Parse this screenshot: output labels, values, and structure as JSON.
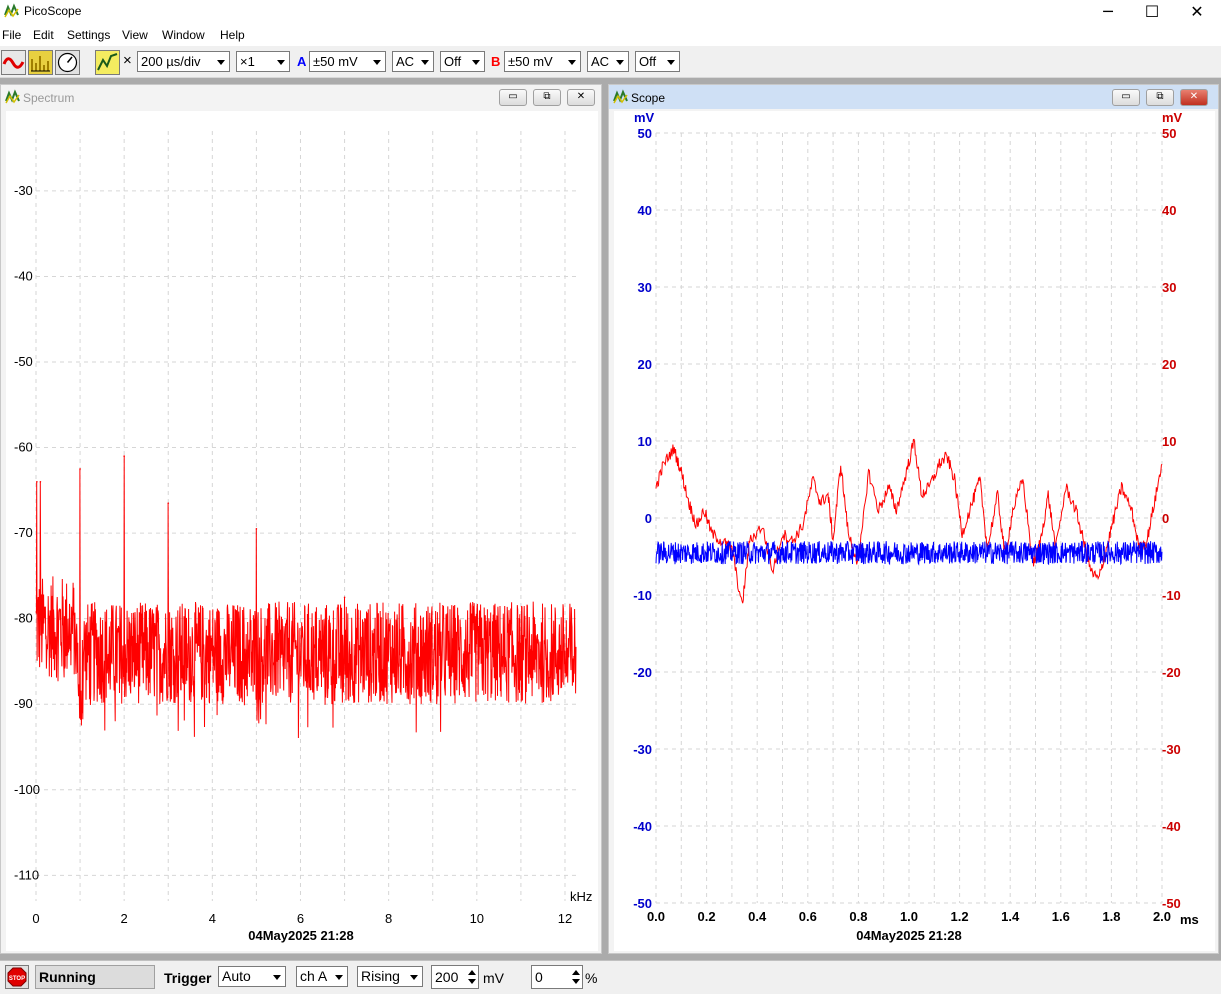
{
  "app": {
    "title": "PicoScope",
    "window_controls": {
      "minimize": "─",
      "maximize": "☐",
      "close": "✕"
    }
  },
  "menu": [
    "File",
    "Edit",
    "Settings",
    "View",
    "Window",
    "Help"
  ],
  "toolbar": {
    "icons": [
      "scope-mode-icon",
      "spectrum-mode-icon",
      "meter-mode-icon",
      "signal-generator-icon"
    ],
    "multiply_sign": "×",
    "timebase": "200 µs/div",
    "zoom": "×1",
    "channel_a": {
      "label": "A",
      "range": "±50 mV",
      "coupling": "AC",
      "filter": "Off",
      "color": "#0000ff"
    },
    "channel_b": {
      "label": "B",
      "range": "±50 mV",
      "coupling": "AC",
      "filter": "Off",
      "color": "#ff0000"
    }
  },
  "spectrum_window": {
    "title": "Spectrum",
    "buttons": {
      "minimize": "▭",
      "restore": "⧉",
      "close": "✕"
    },
    "timestamp": "04May2025  21:28",
    "chart_data": {
      "type": "line",
      "x_unit": "kHz",
      "x_ticks": [
        0,
        2,
        4,
        6,
        8,
        10,
        12
      ],
      "y_ticks": [
        -30,
        -40,
        -50,
        -60,
        -70,
        -80,
        -90,
        -100,
        -110
      ],
      "xlim": [
        0,
        12.25
      ],
      "ylim": [
        -113,
        -23
      ],
      "noise_floor_db": -84,
      "series": [
        {
          "color": "#ff0000",
          "peaks": [
            {
              "x": 0.02,
              "y": -64
            },
            {
              "x": 0.1,
              "y": -64
            },
            {
              "x": 1.0,
              "y": -62.5
            },
            {
              "x": 2.0,
              "y": -61
            },
            {
              "x": 3.0,
              "y": -66.5
            },
            {
              "x": 5.0,
              "y": -69.5
            },
            {
              "x": 7.0,
              "y": -77.5
            }
          ]
        }
      ]
    }
  },
  "scope_window": {
    "title": "Scope",
    "buttons": {
      "minimize": "▭",
      "restore": "⧉",
      "close": "✕"
    },
    "timestamp": "04May2025  21:28",
    "chart_data": {
      "type": "line",
      "x_unit": "ms",
      "x_ticks": [
        "0.0",
        "0.2",
        "0.4",
        "0.6",
        "0.8",
        "1.0",
        "1.2",
        "1.4",
        "1.6",
        "1.8",
        "2.0"
      ],
      "y_ticks": [
        50,
        40,
        30,
        20,
        10,
        0,
        -10,
        -20,
        -30,
        -40,
        -50
      ],
      "y_unit_left": "mV",
      "y_unit_right": "mV",
      "xlim": [
        0,
        2.0
      ],
      "ylim": [
        -50,
        50
      ],
      "series": [
        {
          "color": "#0000ff",
          "channel": "A",
          "mean_mv": -4.5,
          "noise_mv": 1.5
        },
        {
          "color": "#ff0000",
          "channel": "B",
          "points": [
            [
              0.0,
              4
            ],
            [
              0.03,
              7
            ],
            [
              0.07,
              9
            ],
            [
              0.1,
              6
            ],
            [
              0.13,
              2
            ],
            [
              0.16,
              -1
            ],
            [
              0.19,
              1
            ],
            [
              0.22,
              -2
            ],
            [
              0.26,
              -3
            ],
            [
              0.3,
              -4
            ],
            [
              0.34,
              -11.5
            ],
            [
              0.37,
              -3
            ],
            [
              0.42,
              -1
            ],
            [
              0.46,
              -7
            ],
            [
              0.5,
              -2
            ],
            [
              0.54,
              -3
            ],
            [
              0.58,
              -1
            ],
            [
              0.62,
              5
            ],
            [
              0.65,
              2
            ],
            [
              0.68,
              3
            ],
            [
              0.7,
              -3
            ],
            [
              0.73,
              7
            ],
            [
              0.76,
              -2
            ],
            [
              0.8,
              -6
            ],
            [
              0.84,
              6
            ],
            [
              0.88,
              1
            ],
            [
              0.92,
              4
            ],
            [
              0.95,
              1
            ],
            [
              0.99,
              6
            ],
            [
              1.02,
              10
            ],
            [
              1.05,
              3
            ],
            [
              1.08,
              4
            ],
            [
              1.12,
              7
            ],
            [
              1.15,
              8
            ],
            [
              1.18,
              5
            ],
            [
              1.21,
              -2
            ],
            [
              1.25,
              2
            ],
            [
              1.28,
              5
            ],
            [
              1.31,
              -4
            ],
            [
              1.35,
              3
            ],
            [
              1.38,
              -5
            ],
            [
              1.41,
              1
            ],
            [
              1.45,
              5
            ],
            [
              1.49,
              -6
            ],
            [
              1.52,
              -3
            ],
            [
              1.55,
              3
            ],
            [
              1.58,
              -4
            ],
            [
              1.62,
              4
            ],
            [
              1.66,
              1
            ],
            [
              1.69,
              -3
            ],
            [
              1.72,
              -7
            ],
            [
              1.75,
              -8
            ],
            [
              1.78,
              -4
            ],
            [
              1.81,
              0
            ],
            [
              1.84,
              4
            ],
            [
              1.88,
              1
            ],
            [
              1.91,
              -4
            ],
            [
              1.94,
              -3
            ],
            [
              1.97,
              2
            ],
            [
              2.0,
              7
            ]
          ]
        }
      ]
    }
  },
  "status": {
    "state": "Running",
    "trigger_label": "Trigger",
    "trigger_mode": "Auto",
    "trigger_channel": "ch A",
    "trigger_edge": "Rising",
    "trigger_level": "200",
    "trigger_level_unit": "mV",
    "pretrigger": "0",
    "pretrigger_unit": "%"
  }
}
